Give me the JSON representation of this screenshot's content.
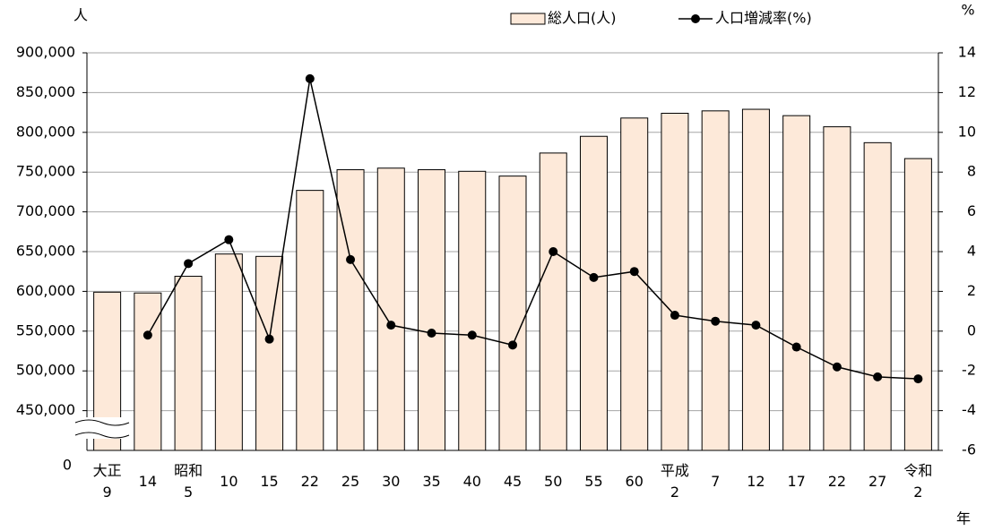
{
  "chart_data": {
    "type": "bar_line",
    "y_unit": "人",
    "y2_unit": "%",
    "x_unit": "年",
    "y_origin_label": "0",
    "categories": [
      "大正\n9",
      "14",
      "昭和\n5",
      "10",
      "15",
      "22",
      "25",
      "30",
      "35",
      "40",
      "45",
      "50",
      "55",
      "60",
      "平成\n2",
      "7",
      "12",
      "17",
      "22",
      "27",
      "令和\n2"
    ],
    "series": [
      {
        "name": "総人口(人)",
        "type": "bar",
        "color": "#fde9d9",
        "values": [
          599000,
          598000,
          619000,
          647000,
          644000,
          727000,
          753000,
          755000,
          753000,
          751000,
          745000,
          774000,
          795000,
          818000,
          824000,
          827000,
          829000,
          821000,
          807000,
          787000,
          767000
        ]
      },
      {
        "name": "人口増減率(%)",
        "type": "line",
        "axis": "y2",
        "color": "#000000",
        "values": [
          null,
          -0.2,
          3.4,
          4.6,
          -0.4,
          12.7,
          3.6,
          0.3,
          -0.1,
          -0.2,
          -0.7,
          4.0,
          2.7,
          3.0,
          0.8,
          0.5,
          0.3,
          -0.8,
          -1.8,
          -2.3,
          -2.4
        ]
      }
    ],
    "ylim": [
      400000,
      900000
    ],
    "yticks": [
      {
        "value": 450000,
        "label": "450,000"
      },
      {
        "value": 500000,
        "label": "500,000"
      },
      {
        "value": 550000,
        "label": "550,000"
      },
      {
        "value": 600000,
        "label": "600,000"
      },
      {
        "value": 650000,
        "label": "650,000"
      },
      {
        "value": 700000,
        "label": "700,000"
      },
      {
        "value": 750000,
        "label": "750,000"
      },
      {
        "value": 800000,
        "label": "800,000"
      },
      {
        "value": 850000,
        "label": "850,000"
      },
      {
        "value": 900000,
        "label": "900,000"
      }
    ],
    "y2lim": [
      -6,
      14
    ],
    "y2ticks": [
      -6,
      -4,
      -2,
      0,
      2,
      4,
      6,
      8,
      10,
      12,
      14
    ],
    "grid": true
  }
}
